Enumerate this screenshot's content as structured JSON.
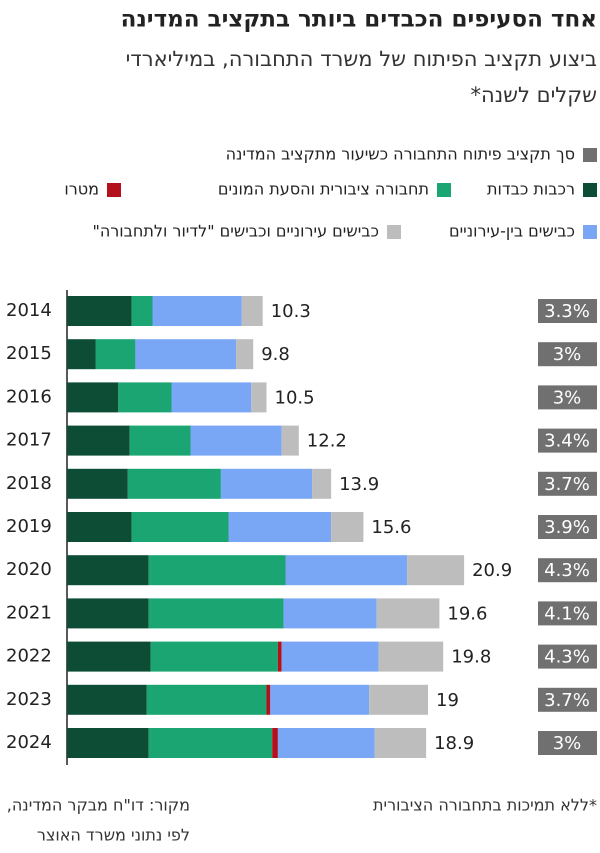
{
  "chart_data": {
    "type": "stacked_bar_horizontal",
    "title": "אחד הסעיפים הכבדים ביותר בתקציב המדינה",
    "subtitle": [
      "ביצוע תקציב הפיתוח של משרד התחבורה, במיליארדי",
      "שקלים לשנה*"
    ],
    "categories": [
      "2014",
      "2015",
      "2016",
      "2017",
      "2018",
      "2019",
      "2020",
      "2021",
      "2022",
      "2023",
      "2024"
    ],
    "series": [
      {
        "name": "רכבות כבדות",
        "color": "#0e4d35",
        "values": [
          3.4,
          1.5,
          2.7,
          3.3,
          3.2,
          3.4,
          4.3,
          4.3,
          4.4,
          4.2,
          4.3
        ]
      },
      {
        "name": "תחבורה ציבורית והסעת המונים",
        "color": "#1aa572",
        "values": [
          1.1,
          2.1,
          2.8,
          3.2,
          4.9,
          5.1,
          7.2,
          7.1,
          6.7,
          6.3,
          6.5
        ]
      },
      {
        "name": "מטרו",
        "color": "#b3121c",
        "values": [
          0,
          0,
          0,
          0,
          0,
          0,
          0,
          0,
          0.2,
          0.2,
          0.3
        ]
      },
      {
        "name": "כבישים בין-עירוניים",
        "color": "#7aa7f5",
        "values": [
          4.7,
          5.3,
          4.2,
          4.8,
          4.8,
          5.4,
          6.4,
          4.9,
          5.1,
          5.2,
          5.1
        ]
      },
      {
        "name": "כבישים עירוניים וכבישים \"לדיור ולתחבורה\"",
        "color": "#bdbdbd",
        "values": [
          1.1,
          0.9,
          0.8,
          0.9,
          1.0,
          1.7,
          3.0,
          3.3,
          3.4,
          3.1,
          2.7
        ]
      }
    ],
    "totals": [
      10.3,
      9.8,
      10.5,
      12.2,
      13.9,
      15.6,
      20.9,
      19.6,
      19.8,
      19,
      18.9
    ],
    "budget_share": {
      "name": "סך תקציב פיתוח התחבורה כשיעור מתקציב המדינה",
      "color": "#707070",
      "values": [
        3.3,
        3,
        3,
        3.4,
        3.7,
        3.9,
        4.3,
        4.1,
        4.3,
        3.7,
        3
      ],
      "value_labels": [
        "3.3%",
        "3%",
        "3%",
        "3.4%",
        "3.7%",
        "3.9%",
        "4.3%",
        "4.1%",
        "4.3%",
        "3.7%",
        "3%"
      ]
    },
    "footnote": "*ללא תמיכות בתחבורה הציבורית",
    "source": [
      "מקור: דו\"ח מבקר המדינה,",
      "לפי נתוני משרד האוצר"
    ]
  }
}
